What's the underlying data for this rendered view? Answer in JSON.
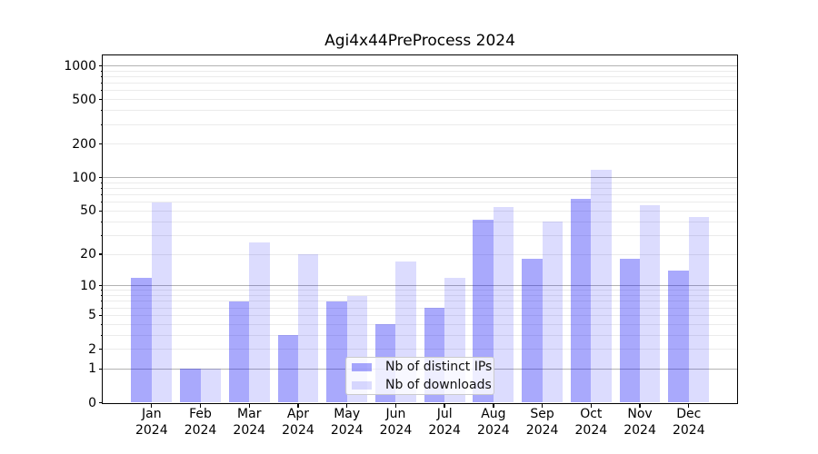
{
  "chart_data": {
    "type": "bar",
    "title": "Agi4x44PreProcess 2024",
    "categories": [
      "Jan",
      "Feb",
      "Mar",
      "Apr",
      "May",
      "Jun",
      "Jul",
      "Aug",
      "Sep",
      "Oct",
      "Nov",
      "Dec"
    ],
    "x_tick_year": "2024",
    "series": [
      {
        "name": "Nb of distinct IPs",
        "color": "rgba(10,10,245,0.35)",
        "values": [
          12,
          1,
          7,
          3,
          7,
          4,
          6,
          42,
          18,
          64,
          18,
          14
        ]
      },
      {
        "name": "Nb of downloads",
        "color": "rgba(10,10,245,0.14)",
        "values": [
          60,
          1,
          26,
          20,
          8,
          17,
          12,
          54,
          40,
          117,
          56,
          44
        ]
      }
    ],
    "y_axis": {
      "scale": "log10(1+y)",
      "ylim": [
        0,
        1240
      ],
      "ticks": [
        0,
        1,
        2,
        5,
        10,
        20,
        50,
        100,
        200,
        500,
        1000
      ],
      "tick_labels": [
        "0",
        "1",
        "2",
        "5",
        "10",
        "20",
        "50",
        "100",
        "200",
        "500",
        "1000"
      ],
      "major_gridlines": [
        1,
        10,
        100,
        1000
      ],
      "minor_gridlines": [
        2,
        3,
        4,
        5,
        6,
        7,
        8,
        9,
        20,
        30,
        40,
        50,
        60,
        70,
        80,
        90,
        200,
        300,
        400,
        500,
        600,
        700,
        800,
        900
      ]
    },
    "grid": true,
    "legend_position": "lower center"
  },
  "colors": {
    "grid_major": "#b3b3b3",
    "grid_minor": "#ebebeb",
    "axis": "#000000",
    "legend_border": "#cbcbcb",
    "legend_background": "rgba(255,255,255,0.8)",
    "background": "#ffffff"
  }
}
